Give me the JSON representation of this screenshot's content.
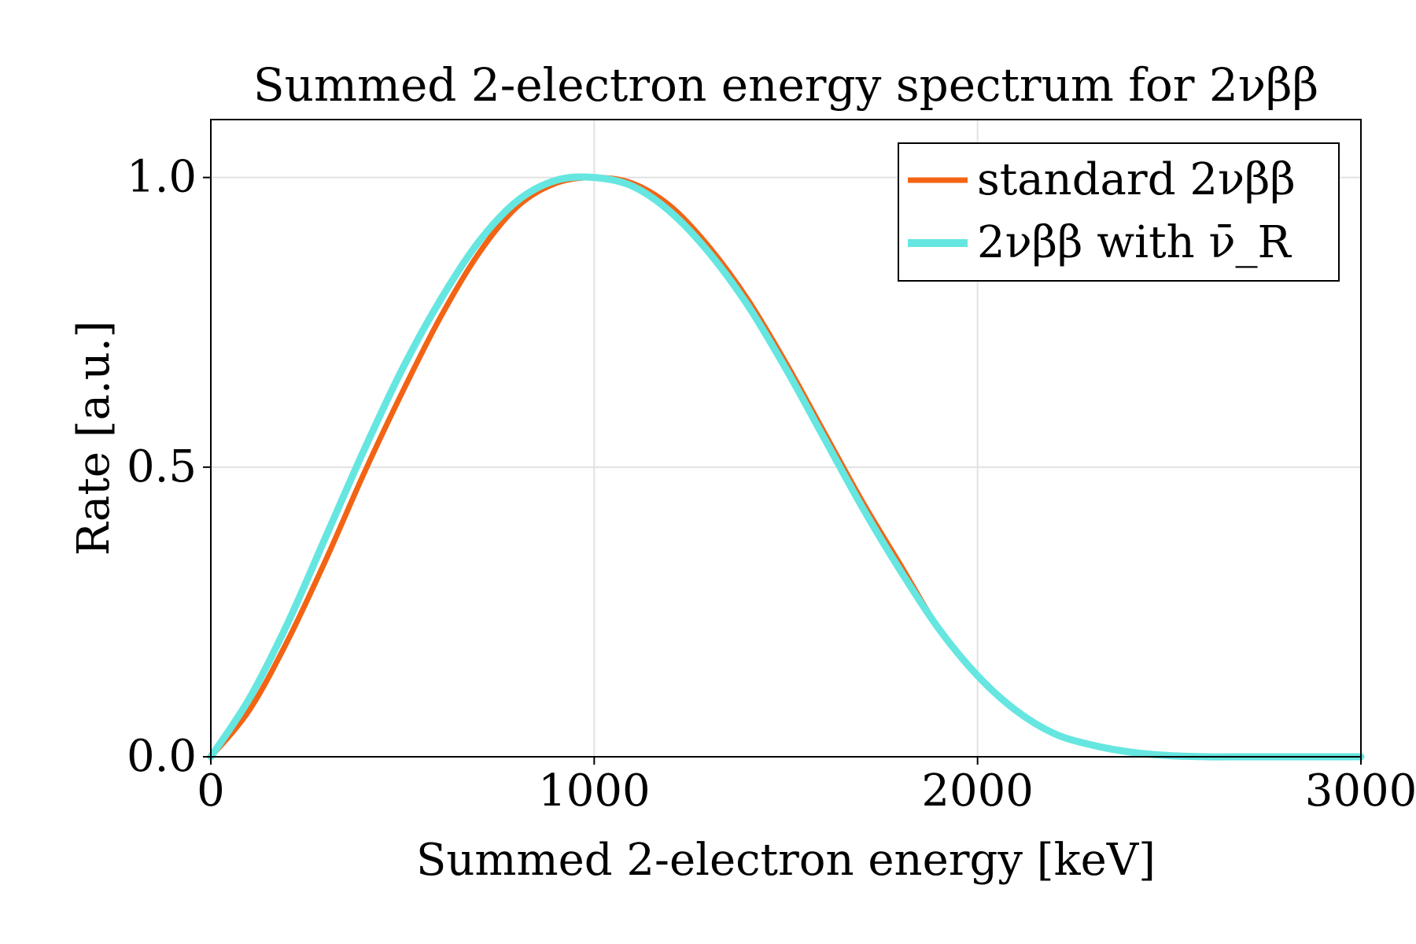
{
  "chart_data": {
    "type": "line",
    "title": "Summed 2-electron energy spectrum for 2νββ",
    "xlabel": "Summed 2-electron energy [keV]",
    "ylabel": "Rate [a.u.]",
    "xlim": [
      0,
      3000
    ],
    "ylim": [
      0,
      1.1
    ],
    "xticks": [
      0,
      1000,
      2000,
      3000
    ],
    "xtick_labels": [
      "0",
      "1000",
      "2000",
      "3000"
    ],
    "yticks": [
      0.0,
      0.5,
      1.0
    ],
    "ytick_labels": [
      "0.0",
      "0.5",
      "1.0"
    ],
    "grid": true,
    "legend_position": "top-right",
    "x": [
      0,
      100,
      200,
      300,
      400,
      500,
      600,
      700,
      800,
      900,
      1000,
      1100,
      1200,
      1300,
      1400,
      1500,
      1600,
      1700,
      1800,
      1900,
      2000,
      2100,
      2200,
      2300,
      2400,
      2500,
      2600,
      2700,
      2800,
      2900,
      3000
    ],
    "series": [
      {
        "name": "standard 2νββ",
        "color": "#f26414",
        "values": [
          0.0,
          0.08,
          0.2,
          0.34,
          0.49,
          0.63,
          0.76,
          0.87,
          0.95,
          0.99,
          1.0,
          0.99,
          0.95,
          0.88,
          0.79,
          0.68,
          0.56,
          0.44,
          0.33,
          0.22,
          0.14,
          0.08,
          0.04,
          0.02,
          0.008,
          0.002,
          0.0,
          0.0,
          0.0,
          0.0,
          0.0
        ]
      },
      {
        "name": "2νββ with ν̄_R",
        "color": "#66e6e0",
        "values": [
          0.0,
          0.1,
          0.23,
          0.38,
          0.53,
          0.67,
          0.79,
          0.89,
          0.96,
          0.995,
          1.0,
          0.985,
          0.94,
          0.87,
          0.78,
          0.67,
          0.55,
          0.43,
          0.32,
          0.22,
          0.14,
          0.08,
          0.04,
          0.02,
          0.008,
          0.002,
          0.0,
          0.0,
          0.0,
          0.0,
          0.0
        ]
      }
    ],
    "legend": {
      "entries": [
        "standard 2νββ",
        "2νββ with ν̄_R"
      ]
    }
  }
}
